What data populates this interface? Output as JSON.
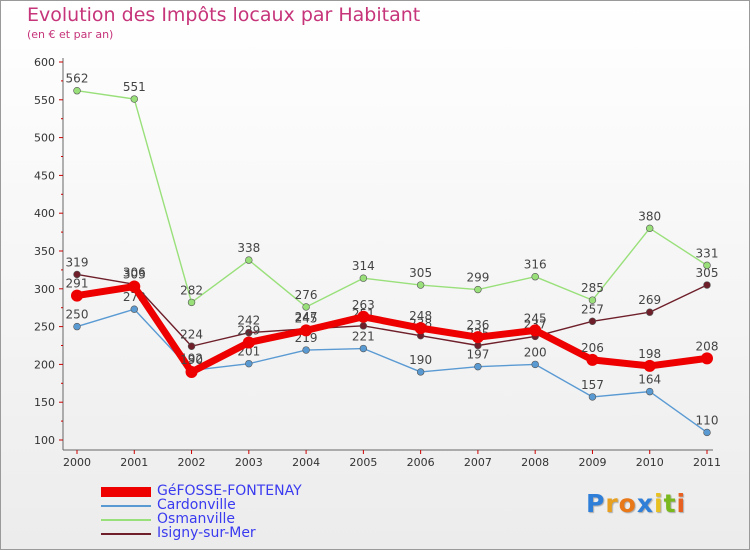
{
  "chart_data": {
    "type": "line",
    "title": "Evolution des Impôts locaux par Habitant",
    "subtitle": "(en € et par an)",
    "xlabel": "",
    "ylabel": "",
    "x": [
      "2000",
      "2001",
      "2002",
      "2003",
      "2004",
      "2005",
      "2006",
      "2007",
      "2008",
      "2009",
      "2010",
      "2011"
    ],
    "ylim": [
      100,
      600
    ],
    "yticks": [
      100,
      150,
      200,
      250,
      300,
      350,
      400,
      450,
      500,
      550,
      600
    ],
    "grid": false,
    "legend_position": "bottom-left",
    "series": [
      {
        "name": "Isigny-sur-Mer",
        "color": "#6e1f2a",
        "values": [
          319,
          306,
          224,
          242,
          247,
          251,
          238,
          225,
          237,
          257,
          269,
          305
        ]
      },
      {
        "name": "Osmanville",
        "color": "#99e07a",
        "values": [
          562,
          551,
          282,
          338,
          276,
          314,
          305,
          299,
          316,
          285,
          380,
          331
        ]
      },
      {
        "name": "Cardonville",
        "color": "#5a9ad3",
        "values": [
          250,
          273,
          192,
          201,
          219,
          221,
          190,
          197,
          200,
          157,
          164,
          110
        ]
      },
      {
        "name": "GéFOSSE-FONTENAY",
        "color": "#ee0000",
        "values": [
          291,
          303,
          190,
          229,
          245,
          263,
          248,
          236,
          245,
          206,
          198,
          208
        ]
      }
    ],
    "legend": [
      "GéFOSSE-FONTENAY",
      "Cardonville",
      "Osmanville",
      "Isigny-sur-Mer"
    ]
  },
  "logo": {
    "letters": [
      "P",
      "r",
      "o",
      "x",
      "i",
      "t",
      "i"
    ],
    "colors": [
      "#2f7fd8",
      "#e8a020",
      "#e87818",
      "#2f7fd8",
      "#e8c020",
      "#7ab820",
      "#e86020"
    ]
  }
}
